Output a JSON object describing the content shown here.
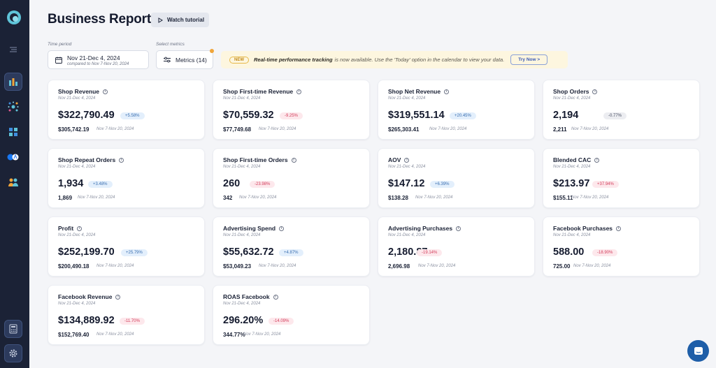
{
  "header": {
    "title": "Business Report",
    "tutorial_label": "Watch tutorial"
  },
  "filters": {
    "time_period_label": "Time period",
    "period_value": "Nov 21-Dec 4, 2024",
    "period_compare": "compared to Nov 7-Nov 20, 2024",
    "metrics_label": "Select metrics",
    "metrics_value": "Metrics (14)"
  },
  "banner": {
    "badge": "NEW",
    "bold": "Real-time performance tracking",
    "text": "is now available. Use the 'Today' option in the calendar to view your data.",
    "button": "Try Now >"
  },
  "cards": [
    {
      "title": "Shop Revenue",
      "date": "Nov 21-Dec 4, 2024",
      "value": "$322,790.49",
      "change": "+5.58%",
      "trend": "pos",
      "prev": "$305,742.19",
      "prev_date": "Nov 7-Nov 20, 2024"
    },
    {
      "title": "Shop First-time Revenue",
      "date": "Nov 21-Dec 4, 2024",
      "value": "$70,559.32",
      "change": "-9.25%",
      "trend": "neg",
      "prev": "$77,749.68",
      "prev_date": "Nov 7-Nov 20, 2024"
    },
    {
      "title": "Shop Net Revenue",
      "date": "Nov 21-Dec 4, 2024",
      "value": "$319,551.14",
      "change": "+20.45%",
      "trend": "pos",
      "prev": "$265,303.41",
      "prev_date": "Nov 7-Nov 20, 2024"
    },
    {
      "title": "Shop Orders",
      "date": "Nov 21-Dec 4, 2024",
      "value": "2,194",
      "change": "-0.77%",
      "trend": "neu",
      "prev": "2,211",
      "prev_date": "Nov 7-Nov 20, 2024"
    },
    {
      "title": "Shop Repeat Orders",
      "date": "Nov 21-Dec 4, 2024",
      "value": "1,934",
      "change": "+3.48%",
      "trend": "pos",
      "prev": "1,869",
      "prev_date": "Nov 7-Nov 20, 2024"
    },
    {
      "title": "Shop First-time Orders",
      "date": "Nov 21-Dec 4, 2024",
      "value": "260",
      "change": "-23.98%",
      "trend": "neg",
      "prev": "342",
      "prev_date": "Nov 7-Nov 20, 2024"
    },
    {
      "title": "AOV",
      "date": "Nov 21-Dec 4, 2024",
      "value": "$147.12",
      "change": "+6.39%",
      "trend": "pos",
      "prev": "$138.28",
      "prev_date": "Nov 7-Nov 20, 2024"
    },
    {
      "title": "Blended CAC",
      "date": "Nov 21-Dec 4, 2024",
      "value": "$213.97",
      "change": "+37.94%",
      "trend": "neg",
      "prev": "$155.11",
      "prev_date": "Nov 7-Nov 20, 2024"
    },
    {
      "title": "Profit",
      "date": "Nov 21-Dec 4, 2024",
      "value": "$252,199.70",
      "change": "+25.79%",
      "trend": "pos",
      "prev": "$200,490.18",
      "prev_date": "Nov 7-Nov 20, 2024"
    },
    {
      "title": "Advertising Spend",
      "date": "Nov 21-Dec 4, 2024",
      "value": "$55,632.72",
      "change": "+4.87%",
      "trend": "pos",
      "prev": "$53,049.23",
      "prev_date": "Nov 7-Nov 20, 2024"
    },
    {
      "title": "Advertising Purchases",
      "date": "Nov 21-Dec 4, 2024",
      "value": "2,180.87",
      "change": "-19.14%",
      "trend": "neg",
      "prev": "2,696.98",
      "prev_date": "Nov 7-Nov 20, 2024"
    },
    {
      "title": "Facebook Purchases",
      "date": "Nov 21-Dec 4, 2024",
      "value": "588.00",
      "change": "-18.90%",
      "trend": "neg",
      "prev": "725.00",
      "prev_date": "Nov 7-Nov 20, 2024"
    },
    {
      "title": "Facebook Revenue",
      "date": "Nov 21-Dec 4, 2024",
      "value": "$134,889.92",
      "change": "-11.70%",
      "trend": "neg",
      "prev": "$152,769.40",
      "prev_date": "Nov 7-Nov 20, 2024"
    },
    {
      "title": "ROAS Facebook",
      "date": "Nov 21-Dec 4, 2024",
      "value": "296.20%",
      "change": "-14.09%",
      "trend": "neg",
      "prev": "344.77%",
      "prev_date": "Nov 7-Nov 20, 2024"
    }
  ],
  "colors": {
    "sidebar": "#1b2236",
    "positive": "#3a6fb0",
    "negative": "#d23c5a",
    "accent": "#1e5ea8"
  },
  "icons": {
    "logo": "brand-logo-icon",
    "collapse": "collapse-menu-icon",
    "reports": "bar-chart-icon",
    "network": "network-icon",
    "dashboard": "grid-icon",
    "integrations": "integrations-icon",
    "audience": "users-icon",
    "calculator": "calculator-icon",
    "settings": "gear-icon",
    "chat": "chat-icon"
  }
}
